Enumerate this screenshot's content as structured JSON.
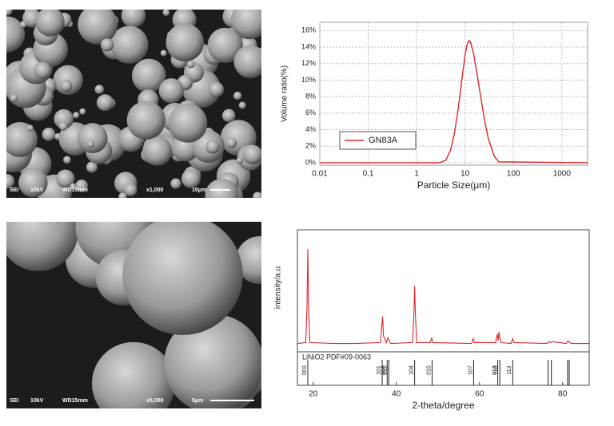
{
  "images": [
    {
      "labels": [
        "SEI",
        "10kV",
        "WD15mm",
        "x1,000",
        "10μm"
      ]
    },
    {
      "labels": [
        "SEI",
        "10kV",
        "WD15mm",
        "x5,000",
        "5μm"
      ]
    }
  ],
  "chart_data": [
    {
      "type": "line",
      "xscale": "log",
      "grid": true,
      "legend": "lower left",
      "xlabel": "Particle Size(μm)",
      "ylabel": "Volume ratio(%)",
      "x": [
        0.01,
        3,
        4,
        5,
        6,
        7,
        8,
        9,
        10,
        11,
        12,
        13,
        15,
        18,
        20,
        25,
        30,
        40,
        50,
        3400
      ],
      "series": [
        {
          "name": "GN83A",
          "color": "#e0262a",
          "values": [
            0,
            0,
            0.3,
            1.5,
            3.5,
            6,
            8.5,
            11,
            13,
            14.3,
            14.8,
            14.6,
            13.2,
            10.5,
            8.8,
            5.3,
            3,
            0.8,
            0.1,
            0
          ]
        }
      ],
      "xlim": [
        0.01,
        3400
      ],
      "xticks": [
        0.01,
        0.1,
        1,
        10,
        100,
        1000
      ],
      "ylim": [
        -0.3,
        17
      ],
      "yticks": [
        {
          "value": 0,
          "label": "0%"
        },
        {
          "value": 2,
          "label": "2%"
        },
        {
          "value": 4,
          "label": "4%"
        },
        {
          "value": 6,
          "label": "6%"
        },
        {
          "value": 8,
          "label": "8%"
        },
        {
          "value": 10,
          "label": "10%"
        },
        {
          "value": 12,
          "label": "12%"
        },
        {
          "value": 14,
          "label": "14%"
        },
        {
          "value": 16,
          "label": "16%"
        }
      ]
    },
    {
      "type": "line",
      "grid": false,
      "xlabel": "2-theta/degree",
      "ylabel": "intensity/a.u",
      "x": [
        16.2,
        18.2,
        18.5,
        18.7,
        18.9,
        19.2,
        25,
        30,
        36.2,
        36.5,
        36.7,
        36.9,
        37.6,
        37.8,
        38.0,
        38.2,
        38.4,
        38.7,
        43.9,
        44.2,
        44.4,
        44.6,
        44.9,
        48.2,
        48.5,
        48.8,
        58.1,
        58.5,
        58.8,
        63.9,
        64.3,
        64.5,
        64.7,
        64.9,
        65.2,
        67.6,
        68.0,
        68.3,
        76.3,
        76.6,
        77.2,
        77.5,
        80.9,
        81.3,
        81.7,
        82.2,
        86.4
      ],
      "series": [
        {
          "color": "#e0262a",
          "values": [
            0.02,
            0.03,
            0.4,
            1.0,
            0.4,
            0.03,
            0.02,
            0.02,
            0.03,
            0.2,
            0.3,
            0.1,
            0.03,
            0.06,
            0.08,
            0.06,
            0.03,
            0.02,
            0.03,
            0.3,
            0.62,
            0.3,
            0.03,
            0.03,
            0.08,
            0.03,
            0.02,
            0.07,
            0.03,
            0.03,
            0.12,
            0.05,
            0.14,
            0.08,
            0.03,
            0.02,
            0.07,
            0.03,
            0.02,
            0.04,
            0.03,
            0.04,
            0.02,
            0.05,
            0.03,
            0.02,
            0.02
          ]
        }
      ],
      "reference": {
        "name": "LiNiO2 PDF#09-0063",
        "x": [
          18.7,
          36.6,
          37.8,
          38.2,
          44.4,
          48.6,
          58.6,
          64.4,
          64.9,
          68.0,
          76.5,
          77.3,
          81.2,
          81.6
        ],
        "labels": [
          "003",
          "101",
          "006",
          "012",
          "104",
          "015",
          "107",
          "018",
          "110",
          "113",
          null,
          null,
          null,
          null
        ]
      },
      "xlim": [
        16.2,
        86.4
      ],
      "xticks": [
        20,
        40,
        60,
        80
      ],
      "ylim": [
        0,
        1.2
      ]
    }
  ]
}
